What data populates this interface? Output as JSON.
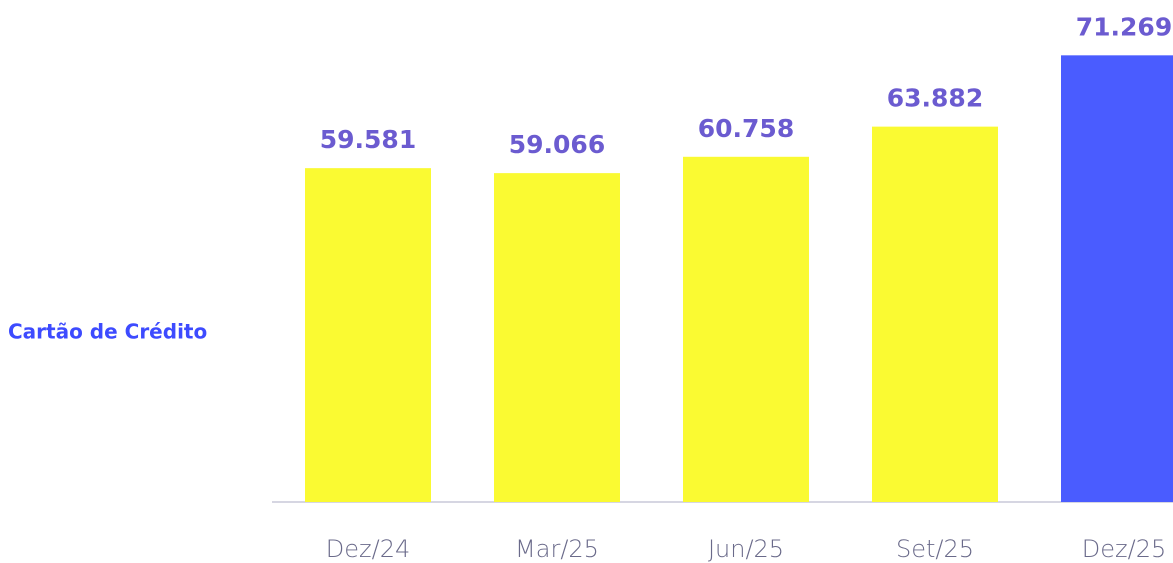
{
  "chart_data": {
    "type": "bar",
    "row_label": "Cartão de Crédito",
    "categories": [
      "Dez/24",
      "Mar/25",
      "Jun/25",
      "Set/25",
      "Dez/25"
    ],
    "values": [
      59581,
      59066,
      60758,
      63882,
      71269
    ],
    "value_labels": [
      "59.581",
      "59.066",
      "60.758",
      "63.882",
      "71.269"
    ],
    "colors": [
      "#fafa32",
      "#fafa32",
      "#fafa32",
      "#fafa32",
      "#4a5cff"
    ],
    "ylim": [
      25000,
      77000
    ]
  }
}
